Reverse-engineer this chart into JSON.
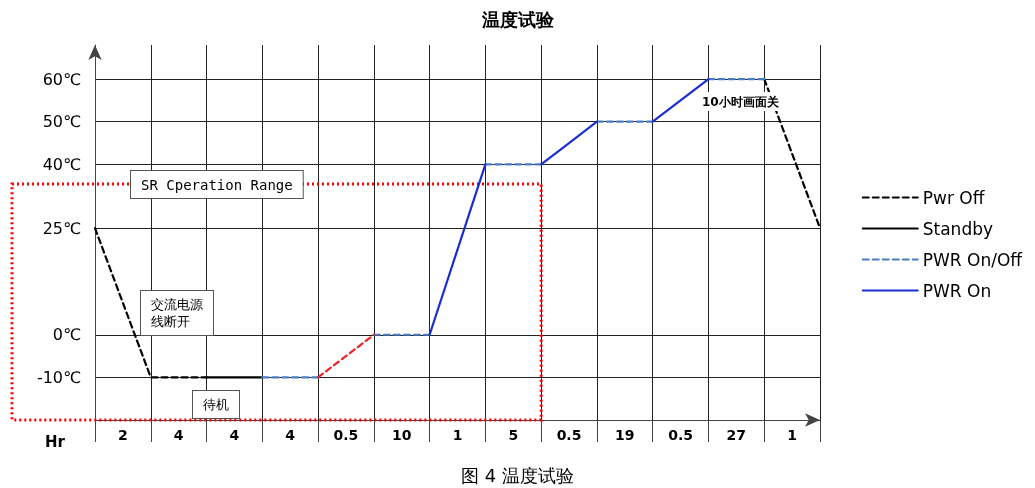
{
  "chart_data": {
    "type": "line",
    "title": "温度试验",
    "xlabel": "Hr",
    "categories": [
      null,
      "2",
      null,
      "4",
      null,
      "4",
      null,
      "4",
      null,
      "0.5",
      null,
      "10",
      null,
      "1",
      null,
      "5",
      null,
      "0.5",
      null,
      "19",
      null,
      "0.5",
      null,
      "27",
      null,
      "1",
      null
    ],
    "ylim": [
      -20,
      68
    ],
    "yticks": [
      {
        "value": -10,
        "label": "-10℃"
      },
      {
        "value": 0,
        "label": "0℃"
      },
      {
        "value": 25,
        "label": "25℃"
      },
      {
        "value": 40,
        "label": "40℃"
      },
      {
        "value": 50,
        "label": "50℃"
      },
      {
        "value": 60,
        "label": "60℃"
      }
    ],
    "grid": true,
    "legend": "right",
    "marker": "none",
    "series": [
      {
        "name": "Pwr Off",
        "color": "#000000",
        "line_style": "dashed",
        "values": [
          25,
          7.5,
          -10,
          -10,
          -10,
          null,
          null,
          null,
          null,
          null,
          null,
          null,
          null,
          null,
          null,
          null,
          null,
          null,
          null,
          null,
          null,
          null,
          null,
          null,
          60,
          42.5,
          25
        ]
      },
      {
        "name": "Standby",
        "color": "#000000",
        "line_style": "solid",
        "values": [
          null,
          null,
          null,
          null,
          -10,
          -10,
          -10,
          null,
          null,
          null,
          null,
          null,
          null,
          null,
          null,
          null,
          null,
          null,
          null,
          null,
          null,
          null,
          null,
          null,
          null,
          null,
          null
        ]
      },
      {
        "name": "PWR On/Off",
        "color": "#4a7cc4",
        "line_style": "dashed",
        "values": [
          null,
          null,
          null,
          null,
          null,
          null,
          -10,
          -10,
          -10,
          null,
          0,
          0,
          0,
          null,
          40,
          40,
          40,
          null,
          50,
          50,
          50,
          null,
          60,
          60,
          60,
          null,
          null
        ]
      },
      {
        "name": "PWR On",
        "color": "#1a2fd0",
        "line_style": "solid",
        "values": [
          null,
          null,
          null,
          null,
          null,
          null,
          null,
          null,
          null,
          null,
          null,
          null,
          0,
          20,
          40,
          null,
          40,
          45,
          50,
          null,
          50,
          55,
          60,
          null,
          null,
          null,
          null
        ]
      },
      {
        "color": "#ee2222",
        "line_style": "dashed",
        "values": [
          null,
          null,
          null,
          null,
          null,
          null,
          null,
          null,
          -10,
          -5,
          0,
          null,
          null,
          null,
          null,
          null,
          null,
          null,
          null,
          null,
          null,
          null,
          null,
          null,
          null,
          null,
          null
        ]
      }
    ],
    "annotations": [
      "SR Cperation Range",
      "交流电源线断开",
      "待机",
      "10小时画面关",
      "图 4 温度试验"
    ]
  }
}
